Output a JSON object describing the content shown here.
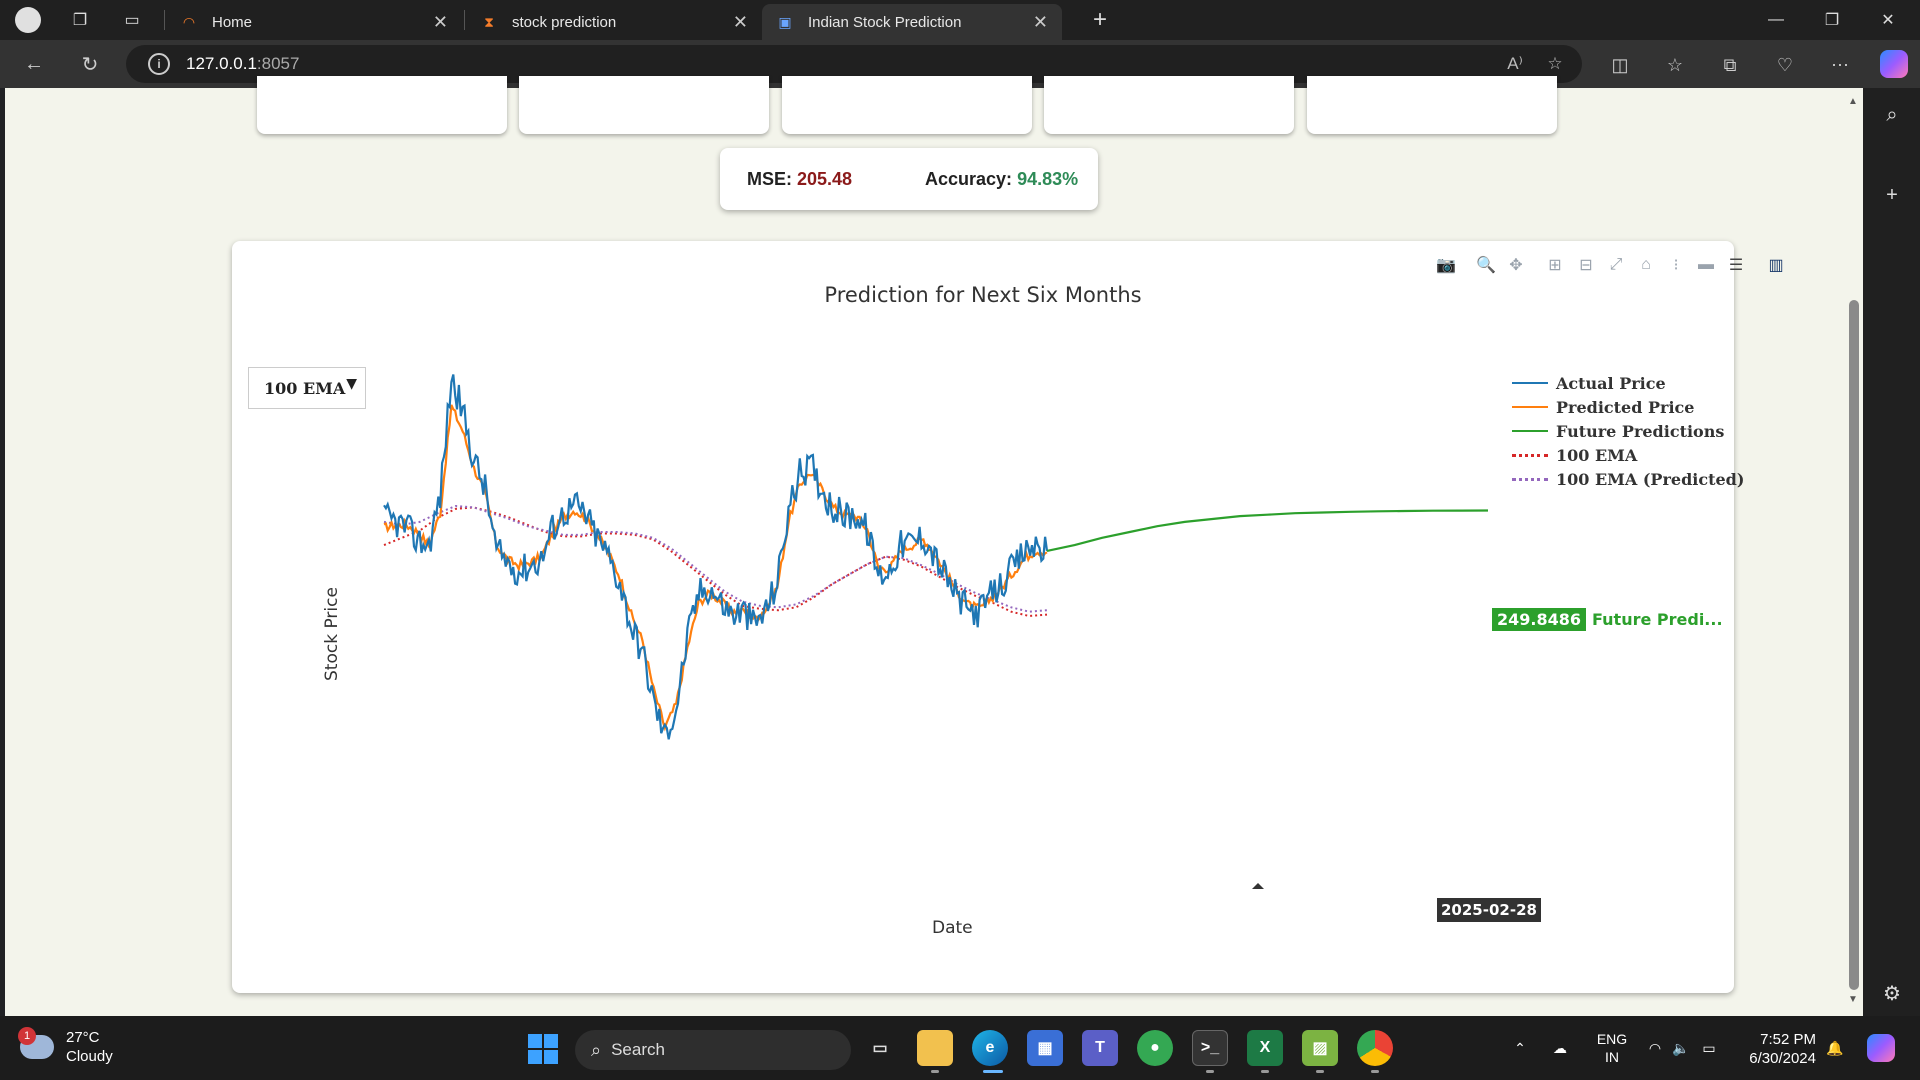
{
  "browser": {
    "tabs": [
      {
        "label": "Home",
        "icon": "loading-icon"
      },
      {
        "label": "stock prediction",
        "icon": "hourglass-icon"
      },
      {
        "label": "Indian Stock Prediction",
        "icon": "terminal-icon",
        "active": true
      }
    ],
    "url_host": "127.0.0.1",
    "url_port": ":8057"
  },
  "metrics": {
    "mse_label": "MSE:",
    "mse_value": "205.48",
    "accuracy_label": "Accuracy:",
    "accuracy_value": "94.83%"
  },
  "chart": {
    "dropdown_value": "100 EMA",
    "hover_value": "249.8486",
    "hover_name": "Future Predi...",
    "hover_date": "2025-02-28"
  },
  "chart_data": {
    "type": "line",
    "title": "Prediction for Next Six Months",
    "xlabel": "Date",
    "ylabel": "Stock Price",
    "grid": false,
    "legend_position": "top-right",
    "series": [
      {
        "name": "Actual Price",
        "color": "#1f77b4",
        "style": "solid",
        "values": [
          245,
          242,
          238,
          229,
          226,
          260,
          342,
          318,
          285,
          265,
          222,
          214,
          208,
          212,
          216,
          238,
          248,
          254,
          246,
          231,
          218,
          200,
          170,
          152,
          118,
          94,
          113,
          162,
          193,
          197,
          186,
          178,
          180,
          171,
          181,
          201,
          250,
          275,
          281,
          264,
          251,
          246,
          247,
          236,
          205,
          209,
          226,
          228,
          232,
          218,
          204,
          190,
          181,
          180,
          191,
          199,
          210,
          221,
          226,
          222
        ]
      },
      {
        "name": "Predicted Price",
        "color": "#ff7f0e",
        "style": "solid",
        "values": [
          238,
          240,
          240,
          235,
          226,
          248,
          322,
          305,
          279,
          262,
          226,
          216,
          212,
          214,
          218,
          234,
          246,
          250,
          244,
          233,
          220,
          204,
          178,
          160,
          126,
          100,
          116,
          155,
          186,
          193,
          187,
          180,
          181,
          175,
          182,
          197,
          242,
          268,
          276,
          264,
          252,
          247,
          246,
          237,
          210,
          210,
          222,
          226,
          230,
          220,
          207,
          194,
          185,
          182,
          189,
          197,
          207,
          217,
          222,
          221
        ]
      },
      {
        "name": "Future Predictions",
        "color": "#2ca02c",
        "style": "solid",
        "values": [
          222,
          226,
          231,
          235,
          239,
          242,
          244,
          246,
          247,
          248,
          248.5,
          249,
          249.3,
          249.5,
          249.7,
          249.8,
          249.85
        ]
      },
      {
        "name": "100 EMA",
        "color": "#d62728",
        "style": "dotted",
        "values": [
          226,
          231,
          236,
          245,
          251,
          252,
          249,
          245,
          240,
          235,
          232,
          232,
          234,
          234,
          233,
          230,
          222,
          212,
          202,
          192,
          184,
          182,
          181,
          183,
          190,
          199,
          206,
          213,
          218,
          216,
          211,
          204,
          197,
          191,
          186,
          180,
          177,
          178
        ]
      },
      {
        "name": "100 EMA (Predicted)",
        "color": "#9467bd",
        "style": "dotted",
        "values": [
          242,
          240,
          242,
          248,
          253,
          252,
          248,
          244,
          239,
          236,
          233,
          233,
          235,
          235,
          234,
          231,
          224,
          214,
          204,
          194,
          187,
          184,
          183,
          185,
          191,
          199,
          206,
          213,
          218,
          217,
          212,
          206,
          199,
          193,
          188,
          183,
          180,
          181
        ]
      }
    ],
    "legend": [
      {
        "name": "Actual Price",
        "color": "#1f77b4",
        "style": "solid"
      },
      {
        "name": "Predicted Price",
        "color": "#ff7f0e",
        "style": "solid"
      },
      {
        "name": "Future Predictions",
        "color": "#2ca02c",
        "style": "solid"
      },
      {
        "name": "100 EMA",
        "color": "#d62728",
        "style": "dotted"
      },
      {
        "name": "100 EMA (Predicted)",
        "color": "#9467bd",
        "style": "dotted"
      }
    ],
    "y_range": [
      70,
      360
    ]
  },
  "taskbar": {
    "weather_temp": "27°C",
    "weather_desc": "Cloudy",
    "weather_badge": "1",
    "search_label": "Search",
    "lang_line1": "ENG",
    "lang_line2": "IN",
    "time": "7:52 PM",
    "date": "6/30/2024"
  }
}
